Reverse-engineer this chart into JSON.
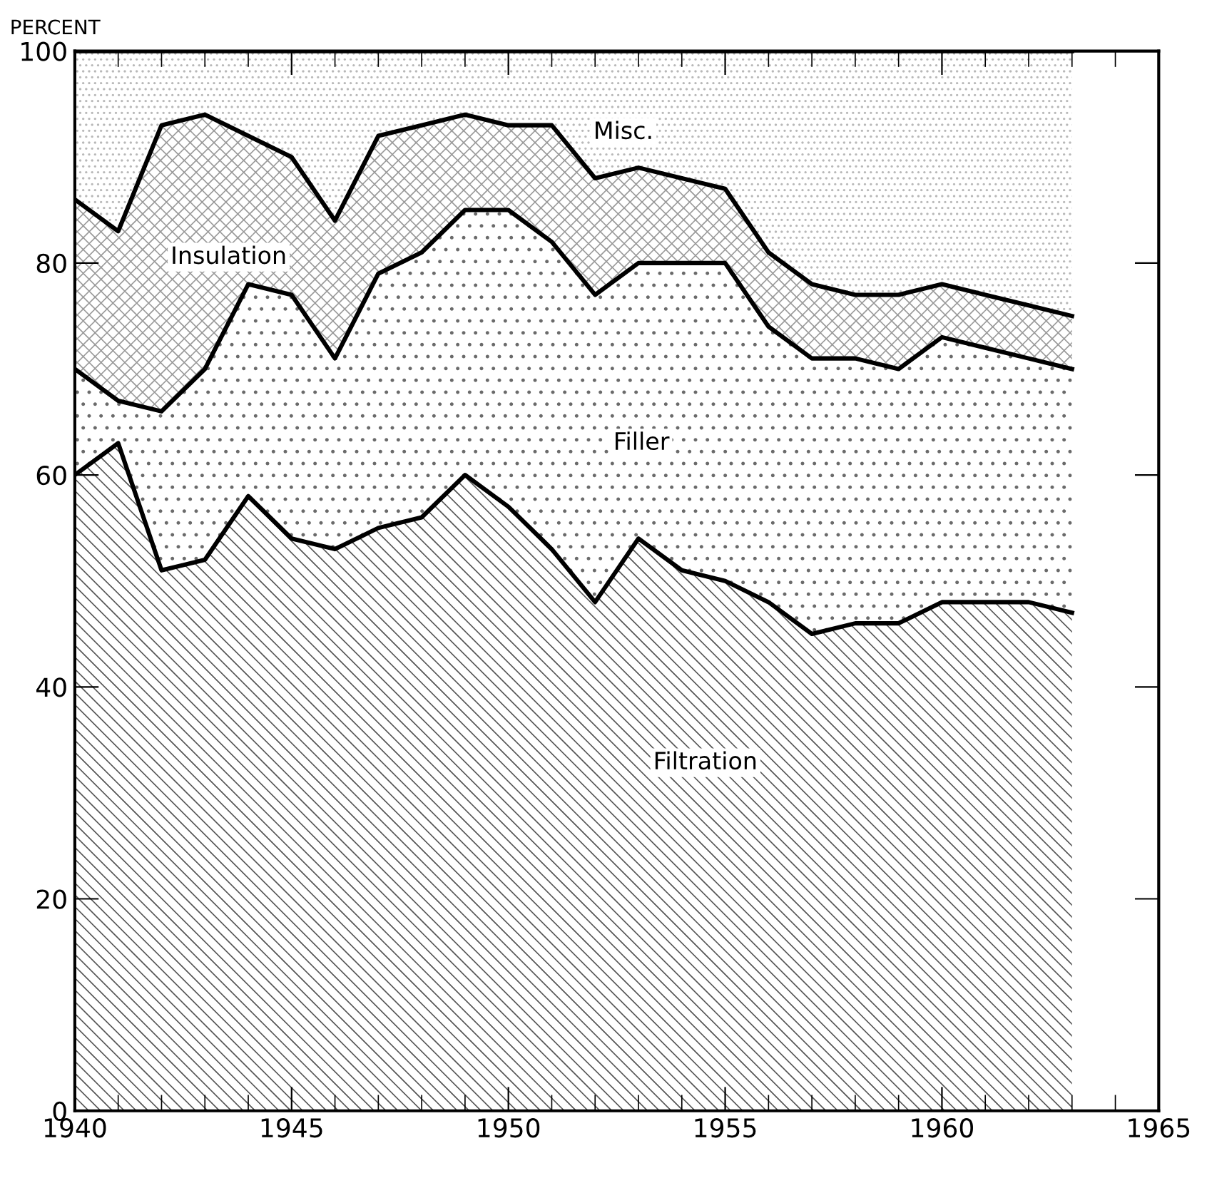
{
  "chart_data": {
    "type": "area",
    "stacked": true,
    "ylabel": "PERCENT",
    "x": [
      1940,
      1941,
      1942,
      1943,
      1944,
      1945,
      1946,
      1947,
      1948,
      1949,
      1950,
      1951,
      1952,
      1953,
      1954,
      1955,
      1956,
      1957,
      1958,
      1959,
      1960,
      1961,
      1962,
      1963
    ],
    "series": [
      {
        "name": "Filtration",
        "color": "#555555",
        "values": [
          60,
          63,
          51,
          52,
          58,
          54,
          53,
          55,
          56,
          60,
          57,
          53,
          48,
          54,
          51,
          50,
          48,
          45,
          46,
          46,
          48,
          48,
          48,
          47
        ]
      },
      {
        "name": "Filler",
        "color": "#6a6a6a",
        "values": [
          10,
          4,
          15,
          18,
          20,
          23,
          18,
          24,
          25,
          25,
          28,
          29,
          29,
          26,
          29,
          30,
          26,
          26,
          25,
          24,
          25,
          24,
          23,
          23
        ]
      },
      {
        "name": "Insulation",
        "color": "#9a9a9a",
        "values": [
          16,
          16,
          27,
          24,
          14,
          13,
          13,
          13,
          12,
          9,
          8,
          11,
          11,
          9,
          8,
          7,
          7,
          7,
          6,
          7,
          5,
          5,
          5,
          5
        ]
      },
      {
        "name": "Misc.",
        "color": "#b8b8b8",
        "values": [
          14,
          17,
          7,
          6,
          8,
          10,
          16,
          8,
          7,
          6,
          7,
          7,
          12,
          11,
          12,
          13,
          19,
          22,
          23,
          23,
          22,
          23,
          24,
          25
        ]
      }
    ],
    "xlim": [
      1940,
      1965
    ],
    "xticks": [
      1940,
      1945,
      1950,
      1955,
      1960,
      1965
    ],
    "ylim": [
      0,
      100
    ],
    "yticks": [
      0,
      20,
      40,
      60,
      80,
      100
    ],
    "grid": false,
    "legend": false
  }
}
